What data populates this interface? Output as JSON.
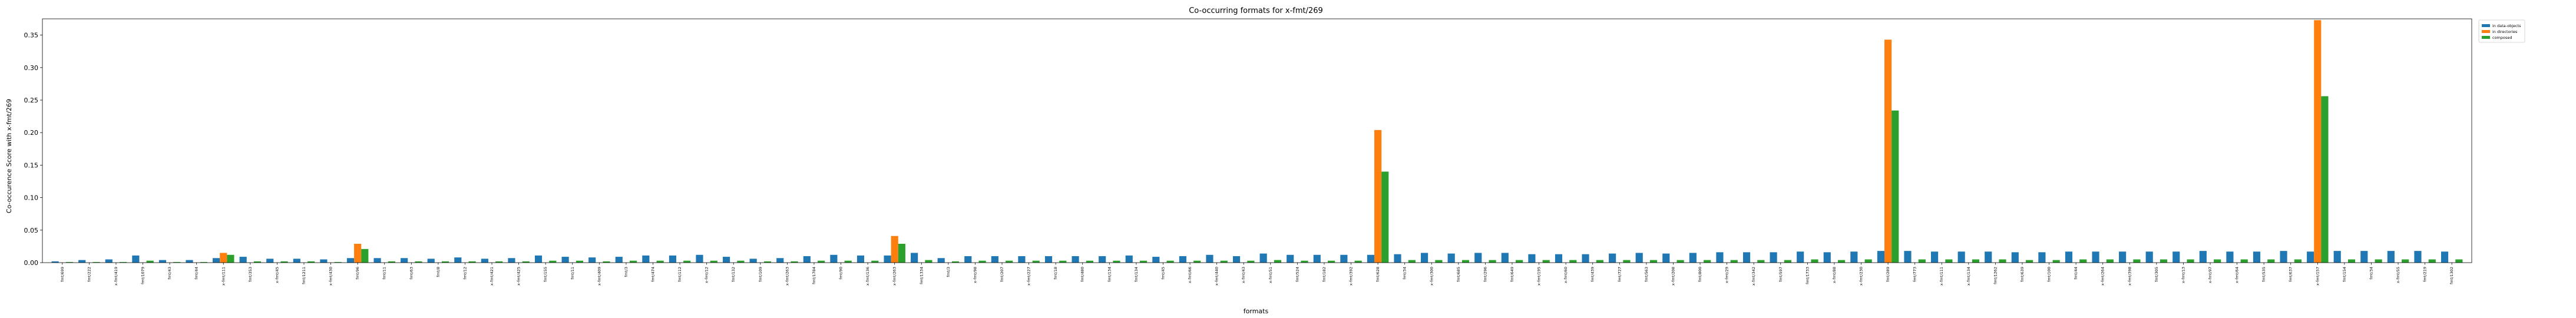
{
  "chart_data": {
    "type": "bar",
    "title": "Co-occurring formats for x-fmt/269",
    "xlabel": "formats",
    "ylabel": "Co-occurence Score with x-fmt/269",
    "ylim": [
      0,
      0.375
    ],
    "yticks": [
      "0.00",
      "0.05",
      "0.10",
      "0.15",
      "0.20",
      "0.25",
      "0.30",
      "0.35"
    ],
    "legend_position": "upper-right-outside",
    "grid": false,
    "categories": [
      "fmt/699",
      "fmt/222",
      "x-fmt/419",
      "fmt/1079",
      "fmt/43",
      "fmt/44",
      "x-fmt/111",
      "fmt/353",
      "x-fmt/45",
      "fmt/1211",
      "x-fmt/430",
      "fmt/96",
      "fmt/11",
      "fmt/63",
      "fmt/8",
      "fmt/12",
      "x-fmt/421",
      "x-fmt/425",
      "fmt/155",
      "fmt/11",
      "x-fmt/409",
      "fmt/3",
      "fmt/474",
      "fmt/112",
      "x-fmt/12",
      "fmt/132",
      "fmt/109",
      "x-fmt/263",
      "fmt/1784",
      "fmt/90",
      "x-fmt/136",
      "x-fmt/263",
      "fmt/1334",
      "fmt/3",
      "x-fmt/98",
      "fmt/207",
      "x-fmt/227",
      "fmt/18",
      "fmt/480",
      "fmt/134",
      "fmt/134",
      "fmt/45",
      "x-fmt/66",
      "x-fmt/440",
      "x-fmt/43",
      "x-fmt/51",
      "fmt/524",
      "fmt/182",
      "x-fmt/392",
      "fmt/628",
      "fmt/34",
      "x-fmt/300",
      "fmt/685",
      "fmt/296",
      "fmt/649",
      "x-fmt/195",
      "x-fmt/60",
      "fmt/439",
      "fmt/727",
      "fmt/563",
      "x-fmt/208",
      "fmt/800",
      "x-fmt/29",
      "x-fmt/342",
      "fmt/597",
      "fmt/1733",
      "x-fmt/88",
      "x-fmt/230",
      "fmt/289",
      "fmt/773",
      "x-fmt/111",
      "x-fmt/134",
      "fmt/1262",
      "fmt/639",
      "fmt/100",
      "fmt/44",
      "x-fmt/264",
      "x-fmt/398",
      "fmt/305",
      "x-fmt/13",
      "x-fmt/97",
      "x-fmt/64",
      "fmt/535",
      "fmt/637",
      "x-fmt/157",
      "fmt/154",
      "fmt/34",
      "x-fmt/55",
      "fmt/219",
      "fmt/1302"
    ],
    "series": [
      {
        "name": "in data-objects",
        "color": "#1f77b4",
        "values": [
          0.002,
          0.004,
          0.005,
          0.011,
          0.004,
          0.004,
          0.007,
          0.009,
          0.006,
          0.006,
          0.005,
          0.007,
          0.007,
          0.007,
          0.006,
          0.008,
          0.006,
          0.007,
          0.011,
          0.009,
          0.008,
          0.009,
          0.011,
          0.011,
          0.012,
          0.009,
          0.006,
          0.007,
          0.01,
          0.012,
          0.011,
          0.011,
          0.015,
          0.007,
          0.01,
          0.01,
          0.01,
          0.01,
          0.01,
          0.01,
          0.011,
          0.009,
          0.01,
          0.012,
          0.01,
          0.014,
          0.012,
          0.012,
          0.012,
          0.012,
          0.013,
          0.015,
          0.014,
          0.015,
          0.015,
          0.013,
          0.013,
          0.013,
          0.014,
          0.015,
          0.014,
          0.015,
          0.016,
          0.016,
          0.016,
          0.017,
          0.016,
          0.017,
          0.018,
          0.018,
          0.017,
          0.017,
          0.017,
          0.016,
          0.016,
          0.017,
          0.017,
          0.017,
          0.017,
          0.017,
          0.018,
          0.017,
          0.017,
          0.018,
          0.017,
          0.018,
          0.018,
          0.018,
          0.018,
          0.017
        ]
      },
      {
        "name": "in directories",
        "color": "#ff7f0e",
        "values": [
          0.0,
          0.0,
          0.0,
          0.0,
          0.0,
          0.0,
          0.015,
          0.0,
          0.0,
          0.0,
          0.0,
          0.029,
          0.0,
          0.0,
          0.0,
          0.0,
          0.0,
          0.0,
          0.0,
          0.0,
          0.0,
          0.0,
          0.0,
          0.0,
          0.0,
          0.0,
          0.0,
          0.0,
          0.0,
          0.0,
          0.0,
          0.041,
          0.0,
          0.0,
          0.0,
          0.0,
          0.0,
          0.0,
          0.0,
          0.0,
          0.0,
          0.0,
          0.0,
          0.0,
          0.0,
          0.0,
          0.0,
          0.0,
          0.0,
          0.204,
          0.0,
          0.0,
          0.0,
          0.0,
          0.0,
          0.0,
          0.0,
          0.0,
          0.0,
          0.0,
          0.0,
          0.0,
          0.0,
          0.0,
          0.0,
          0.0,
          0.0,
          0.0,
          0.343,
          0.0,
          0.0,
          0.0,
          0.0,
          0.0,
          0.0,
          0.0,
          0.0,
          0.0,
          0.0,
          0.0,
          0.0,
          0.0,
          0.0,
          0.0,
          0.373,
          0.0,
          0.0,
          0.0,
          0.0,
          0.0
        ]
      },
      {
        "name": "composed",
        "color": "#2ca02c",
        "values": [
          0.001,
          0.001,
          0.001,
          0.003,
          0.001,
          0.001,
          0.012,
          0.002,
          0.002,
          0.002,
          0.001,
          0.021,
          0.002,
          0.002,
          0.002,
          0.002,
          0.002,
          0.002,
          0.003,
          0.003,
          0.002,
          0.003,
          0.003,
          0.003,
          0.003,
          0.003,
          0.002,
          0.002,
          0.003,
          0.003,
          0.003,
          0.029,
          0.004,
          0.002,
          0.003,
          0.003,
          0.003,
          0.003,
          0.003,
          0.003,
          0.003,
          0.003,
          0.003,
          0.003,
          0.003,
          0.004,
          0.003,
          0.003,
          0.003,
          0.14,
          0.004,
          0.004,
          0.004,
          0.004,
          0.004,
          0.004,
          0.004,
          0.004,
          0.004,
          0.004,
          0.004,
          0.004,
          0.004,
          0.004,
          0.004,
          0.005,
          0.004,
          0.005,
          0.234,
          0.005,
          0.005,
          0.005,
          0.005,
          0.004,
          0.004,
          0.005,
          0.005,
          0.005,
          0.005,
          0.005,
          0.005,
          0.005,
          0.005,
          0.005,
          0.256,
          0.005,
          0.005,
          0.005,
          0.005,
          0.005
        ]
      }
    ]
  }
}
